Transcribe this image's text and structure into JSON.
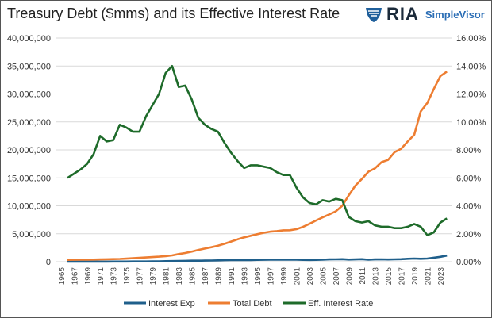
{
  "chart_data": {
    "type": "line",
    "title": "Treasury Debt ($mms) and its Effective Interest Rate",
    "logo": {
      "brand": "RIA",
      "product": "SimpleVisor"
    },
    "x": [
      1966,
      1967,
      1968,
      1969,
      1970,
      1971,
      1972,
      1973,
      1974,
      1975,
      1976,
      1977,
      1978,
      1979,
      1980,
      1981,
      1982,
      1983,
      1984,
      1985,
      1986,
      1987,
      1988,
      1989,
      1990,
      1991,
      1992,
      1993,
      1994,
      1995,
      1996,
      1997,
      1998,
      1999,
      2000,
      2001,
      2002,
      2003,
      2004,
      2005,
      2006,
      2007,
      2008,
      2009,
      2010,
      2011,
      2012,
      2013,
      2014,
      2015,
      2016,
      2017,
      2018,
      2019,
      2020,
      2021,
      2022,
      2023,
      2024
    ],
    "x_ticks": [
      "1965",
      "1967",
      "1969",
      "1971",
      "1973",
      "1975",
      "1977",
      "1979",
      "1981",
      "1983",
      "1985",
      "1987",
      "1989",
      "1991",
      "1993",
      "1995",
      "1997",
      "1999",
      "2001",
      "2003",
      "2005",
      "2007",
      "2009",
      "2011",
      "2013",
      "2015",
      "2017",
      "2019",
      "2021",
      "2023"
    ],
    "left_axis": {
      "ylim": [
        0,
        40000000
      ],
      "ticks": [
        "0",
        "5,000,000",
        "10,000,000",
        "15,000,000",
        "20,000,000",
        "25,000,000",
        "30,000,000",
        "35,000,000",
        "40,000,000"
      ]
    },
    "right_axis": {
      "ylim": [
        0,
        16
      ],
      "ticks": [
        "0.00%",
        "2.00%",
        "4.00%",
        "6.00%",
        "8.00%",
        "10.00%",
        "12.00%",
        "14.00%",
        "16.00%"
      ]
    },
    "grid": true,
    "legend_position": "bottom",
    "series": [
      {
        "name": "Interest Exp",
        "axis": "left",
        "color": "#1f5f8b",
        "values": [
          12000,
          13000,
          14000,
          15000,
          18000,
          20000,
          21000,
          23000,
          27000,
          32000,
          37000,
          42000,
          49000,
          60000,
          74000,
          96000,
          116000,
          128000,
          153000,
          178000,
          190000,
          195000,
          214000,
          241000,
          264000,
          286000,
          292000,
          292000,
          296000,
          332000,
          344000,
          356000,
          364000,
          353000,
          362000,
          359000,
          333000,
          318000,
          321000,
          352000,
          406000,
          430000,
          451000,
          383000,
          414000,
          454000,
          360000,
          416000,
          430000,
          402000,
          432000,
          458000,
          523000,
          574000,
          523000,
          562000,
          718000,
          880000,
          1100000
        ]
      },
      {
        "name": "Total Debt",
        "axis": "left",
        "color": "#ed7d31",
        "values": [
          320000,
          340000,
          360000,
          370000,
          380000,
          410000,
          440000,
          470000,
          490000,
          550000,
          620000,
          700000,
          770000,
          830000,
          910000,
          1000000,
          1140000,
          1370000,
          1560000,
          1820000,
          2120000,
          2350000,
          2600000,
          2860000,
          3210000,
          3600000,
          4000000,
          4350000,
          4640000,
          4920000,
          5180000,
          5370000,
          5480000,
          5610000,
          5630000,
          5810000,
          6230000,
          6780000,
          7380000,
          7930000,
          8450000,
          9010000,
          10000000,
          11900000,
          13600000,
          14800000,
          16100000,
          16700000,
          17800000,
          18200000,
          19600000,
          20200000,
          21500000,
          22700000,
          26900000,
          28400000,
          30900000,
          33200000,
          34000000
        ]
      },
      {
        "name": "Eff. Interest Rate",
        "axis": "right",
        "color": "#1e6b2a",
        "values": [
          6.0,
          6.3,
          6.6,
          7.0,
          7.7,
          9.0,
          8.6,
          8.7,
          9.8,
          9.6,
          9.3,
          9.3,
          10.4,
          11.2,
          12.0,
          13.5,
          14.0,
          12.5,
          12.6,
          11.6,
          10.3,
          9.8,
          9.5,
          9.3,
          8.5,
          7.8,
          7.2,
          6.7,
          6.9,
          6.9,
          6.8,
          6.7,
          6.4,
          6.2,
          6.2,
          5.3,
          4.6,
          4.2,
          4.1,
          4.4,
          4.3,
          4.5,
          4.4,
          3.2,
          2.9,
          2.8,
          2.9,
          2.6,
          2.5,
          2.5,
          2.4,
          2.4,
          2.5,
          2.7,
          2.5,
          1.9,
          2.1,
          2.8,
          3.1
        ]
      }
    ]
  }
}
